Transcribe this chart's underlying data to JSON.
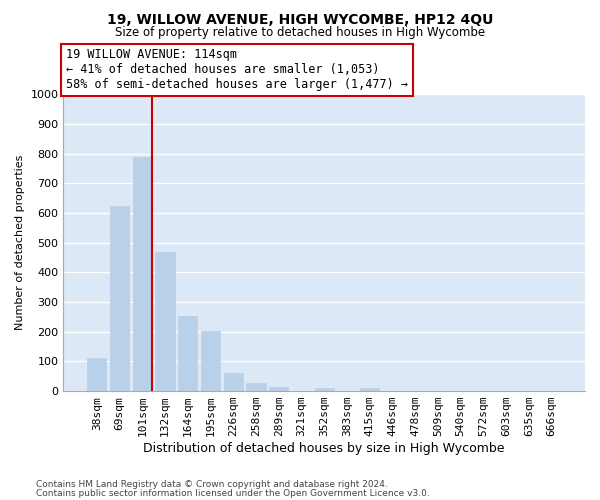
{
  "title": "19, WILLOW AVENUE, HIGH WYCOMBE, HP12 4QU",
  "subtitle": "Size of property relative to detached houses in High Wycombe",
  "xlabel": "Distribution of detached houses by size in High Wycombe",
  "ylabel": "Number of detached properties",
  "footnote1": "Contains HM Land Registry data © Crown copyright and database right 2024.",
  "footnote2": "Contains public sector information licensed under the Open Government Licence v3.0.",
  "bar_labels": [
    "38sqm",
    "69sqm",
    "101sqm",
    "132sqm",
    "164sqm",
    "195sqm",
    "226sqm",
    "258sqm",
    "289sqm",
    "321sqm",
    "352sqm",
    "383sqm",
    "415sqm",
    "446sqm",
    "478sqm",
    "509sqm",
    "540sqm",
    "572sqm",
    "603sqm",
    "635sqm",
    "666sqm"
  ],
  "bar_values": [
    110,
    625,
    790,
    470,
    252,
    202,
    62,
    27,
    15,
    0,
    10,
    0,
    10,
    0,
    0,
    0,
    0,
    0,
    0,
    0,
    0
  ],
  "bar_color": "#b8d0e8",
  "bar_edge_color": "#b8d0e8",
  "vline_color": "#cc0000",
  "annotation_title": "19 WILLOW AVENUE: 114sqm",
  "annotation_line1": "← 41% of detached houses are smaller (1,053)",
  "annotation_line2": "58% of semi-detached houses are larger (1,477) →",
  "box_facecolor": "#ffffff",
  "box_edgecolor": "#cc0000",
  "ylim": [
    0,
    1000
  ],
  "yticks": [
    0,
    100,
    200,
    300,
    400,
    500,
    600,
    700,
    800,
    900,
    1000
  ],
  "plot_bg_color": "#dce8f5",
  "fig_bg_color": "#ffffff",
  "grid_color": "#ffffff",
  "figsize": [
    6.0,
    5.0
  ],
  "dpi": 100
}
